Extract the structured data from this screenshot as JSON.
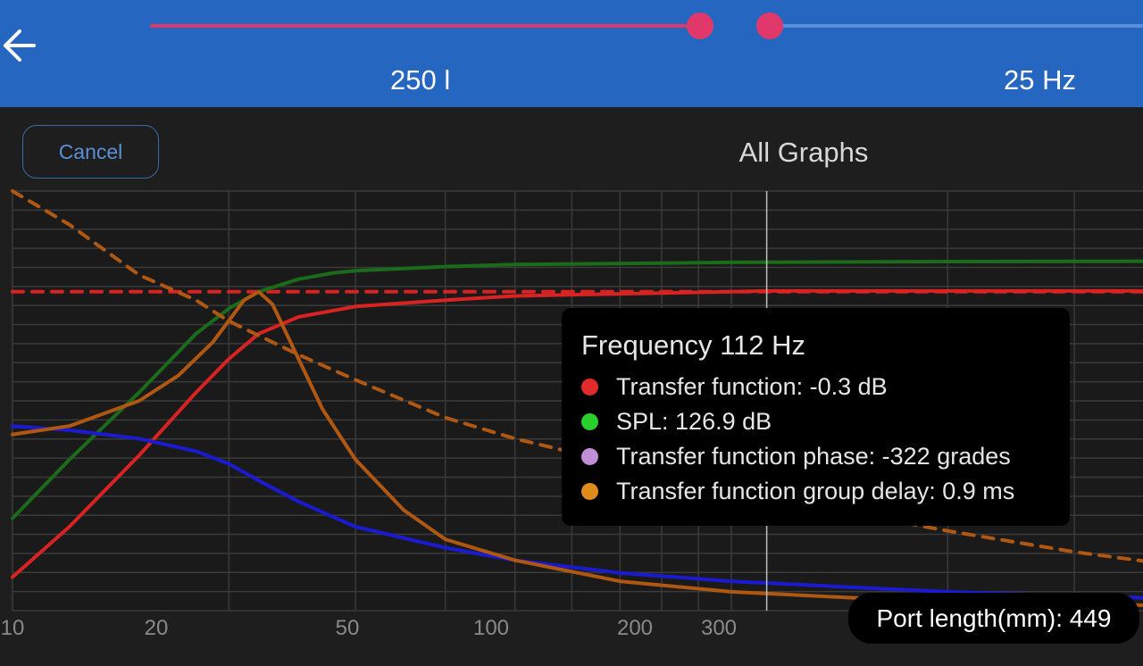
{
  "header": {
    "volume_value": "250 l",
    "frequency_value": "25 Hz",
    "volume_slider_fraction": 0.61,
    "frequency_slider_fraction": 0.01
  },
  "toolbar": {
    "cancel_label": "Cancel",
    "title": "All Graphs"
  },
  "chart_data": {
    "type": "line",
    "x_scale": "log",
    "xlim": [
      10,
      1000
    ],
    "x_ticks": [
      "10",
      "20",
      "50",
      "100",
      "200",
      "300"
    ],
    "grid": true,
    "cursor_x": 112,
    "series": [
      {
        "color": "#d92222",
        "style": "solid",
        "x": [
          10,
          12,
          15,
          18,
          20,
          22,
          25,
          30,
          40,
          50,
          70,
          100,
          112,
          150,
          200,
          300,
          500,
          1000
        ],
        "y": [
          0.08,
          0.2,
          0.37,
          0.52,
          0.6,
          0.66,
          0.7,
          0.725,
          0.74,
          0.75,
          0.755,
          0.76,
          0.762,
          0.762,
          0.762,
          0.762,
          0.762,
          0.762
        ]
      },
      {
        "color": "#d92222",
        "style": "dashed",
        "x": [
          10,
          1000
        ],
        "y": [
          0.76,
          0.76
        ]
      },
      {
        "color": "#1a6b1a",
        "style": "solid",
        "x": [
          10,
          12,
          15,
          18,
          20,
          22,
          25,
          28,
          30,
          40,
          50,
          100,
          200,
          500,
          1000
        ],
        "y": [
          0.22,
          0.36,
          0.52,
          0.66,
          0.72,
          0.76,
          0.79,
          0.805,
          0.81,
          0.82,
          0.825,
          0.83,
          0.832,
          0.833,
          0.833
        ]
      },
      {
        "color": "#1a1ad0",
        "style": "solid",
        "x": [
          10,
          12,
          15,
          18,
          20,
          22,
          25,
          30,
          40,
          50,
          70,
          100,
          150,
          200,
          300,
          500,
          1000
        ],
        "y": [
          0.44,
          0.43,
          0.41,
          0.38,
          0.35,
          0.31,
          0.26,
          0.2,
          0.15,
          0.12,
          0.09,
          0.07,
          0.055,
          0.045,
          0.035,
          0.025,
          0.02
        ]
      },
      {
        "color": "#b05812",
        "style": "solid",
        "x": [
          10,
          12,
          15,
          17,
          19,
          21,
          22,
          23,
          25,
          27,
          30,
          35,
          40,
          50,
          70,
          100,
          150,
          200,
          300,
          500,
          1000
        ],
        "y": [
          0.42,
          0.44,
          0.5,
          0.56,
          0.64,
          0.74,
          0.76,
          0.73,
          0.6,
          0.48,
          0.36,
          0.24,
          0.17,
          0.12,
          0.07,
          0.045,
          0.03,
          0.022,
          0.015,
          0.01,
          0.008
        ]
      },
      {
        "color": "#b05812",
        "style": "dashed",
        "x": [
          10,
          12,
          15,
          18,
          20,
          25,
          30,
          40,
          50,
          70,
          100,
          150,
          200,
          300,
          500,
          1000
        ],
        "y": [
          1.0,
          0.92,
          0.8,
          0.74,
          0.69,
          0.61,
          0.55,
          0.46,
          0.41,
          0.35,
          0.29,
          0.23,
          0.19,
          0.14,
          0.09,
          0.05
        ]
      }
    ]
  },
  "tooltip": {
    "title": "Frequency 112 Hz",
    "rows": [
      {
        "label": "Transfer function: -0.3 dB",
        "color": "#e12a2a"
      },
      {
        "label": "SPL: 126.9 dB",
        "color": "#2ad02a"
      },
      {
        "label": "Transfer function phase: -322 grades",
        "color": "#c08fd6"
      },
      {
        "label": "Transfer function group delay: 0.9 ms",
        "color": "#e08c1a"
      }
    ]
  },
  "port_length": "Port length(mm): 449",
  "colors": {
    "header_bg": "#2566c0",
    "slider_active": "#e0386a",
    "background": "#1e1e1e"
  }
}
